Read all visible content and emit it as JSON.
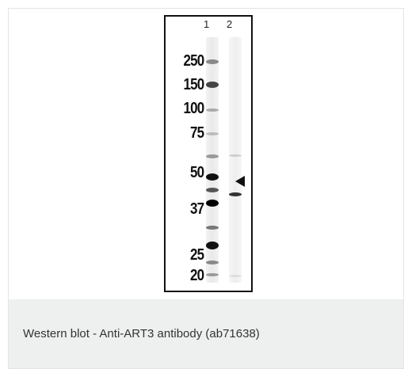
{
  "figure": {
    "lane_labels": [
      "1",
      "2"
    ],
    "markers": [
      "250",
      "150",
      "100",
      "75",
      "50",
      "37",
      "25",
      "20"
    ],
    "arrow_icon": "arrow-left-icon"
  },
  "caption": {
    "text": "Western blot - Anti-ART3 antibody (ab71638)"
  }
}
